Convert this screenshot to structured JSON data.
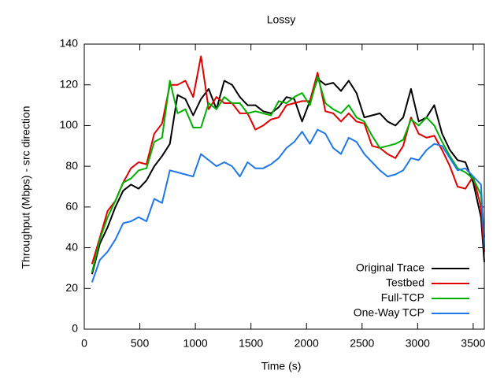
{
  "chart_data": {
    "type": "line",
    "title": "Lossy",
    "x_label": "Time (s)",
    "y_label": "Throughput (Mbps) - src direction",
    "x": [
      70,
      140,
      210,
      280,
      350,
      420,
      490,
      560,
      630,
      700,
      770,
      840,
      910,
      980,
      1050,
      1120,
      1190,
      1260,
      1330,
      1400,
      1470,
      1540,
      1610,
      1680,
      1750,
      1820,
      1890,
      1960,
      2030,
      2100,
      2170,
      2240,
      2310,
      2380,
      2450,
      2520,
      2590,
      2660,
      2730,
      2800,
      2870,
      2940,
      3010,
      3080,
      3150,
      3220,
      3290,
      3360,
      3430,
      3500,
      3570,
      3600
    ],
    "series": [
      {
        "name": "Original Trace",
        "color": "#000000",
        "values": [
          27,
          42,
          50,
          60,
          68,
          71,
          69,
          73,
          80,
          85,
          91,
          115,
          113,
          105,
          113,
          118,
          108,
          122,
          120,
          114,
          110,
          110,
          107,
          106,
          109,
          114,
          113,
          102,
          112,
          123,
          120,
          121,
          117,
          122,
          116,
          104,
          105,
          106,
          102,
          100,
          104,
          118,
          102,
          104,
          110,
          96,
          88,
          83,
          82,
          72,
          55,
          33
        ]
      },
      {
        "name": "Testbed",
        "color": "#e00000",
        "values": [
          32,
          45,
          58,
          63,
          72,
          79,
          82,
          81,
          96,
          101,
          120,
          120,
          122,
          114,
          134,
          108,
          114,
          111,
          111,
          106,
          106,
          98,
          100,
          103,
          104,
          110,
          111,
          112,
          112,
          126,
          107,
          106,
          102,
          106,
          102,
          101,
          90,
          89,
          86,
          84,
          90,
          104,
          96,
          94,
          95,
          88,
          80,
          70,
          69,
          75,
          60,
          38
        ]
      },
      {
        "name": "Full-TCP",
        "color": "#00b000",
        "values": [
          28,
          44,
          55,
          63,
          72,
          74,
          78,
          79,
          92,
          94,
          122,
          106,
          108,
          99,
          99,
          111,
          108,
          114,
          111,
          111,
          106,
          107,
          106,
          105,
          112,
          111,
          114,
          116,
          110,
          124,
          111,
          108,
          106,
          110,
          104,
          102,
          95,
          89,
          90,
          91,
          93,
          103,
          100,
          104,
          100,
          92,
          85,
          79,
          77,
          74,
          66,
          45
        ]
      },
      {
        "name": "One-Way TCP",
        "color": "#1e78e6",
        "values": [
          23,
          34,
          38,
          44,
          52,
          53,
          55,
          53,
          64,
          62,
          78,
          77,
          76,
          75,
          86,
          83,
          80,
          82,
          80,
          75,
          82,
          79,
          79,
          81,
          84,
          89,
          92,
          97,
          91,
          98,
          96,
          89,
          86,
          94,
          92,
          86,
          82,
          78,
          75,
          76,
          78,
          84,
          83,
          88,
          91,
          90,
          84,
          78,
          79,
          75,
          71,
          40
        ]
      }
    ],
    "xlim": [
      0,
      3600
    ],
    "ylim": [
      0,
      140
    ],
    "xticks": [
      0,
      500,
      1000,
      1500,
      2000,
      2500,
      3000,
      3500
    ],
    "yticks": [
      0,
      20,
      40,
      60,
      80,
      100,
      120,
      140
    ],
    "grid": false,
    "legend": "bottom-right"
  }
}
